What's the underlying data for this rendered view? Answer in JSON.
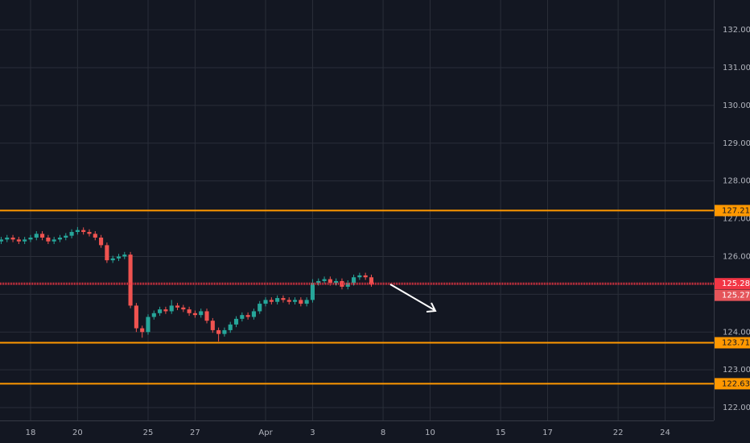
{
  "chart_data": {
    "type": "candlestick",
    "up_color": "#26a69a",
    "down_color": "#ef5350",
    "grid": true,
    "x": [
      -1.25,
      -1,
      -0.75,
      -0.5,
      -0.25,
      0,
      0.25,
      0.5,
      0.75,
      1,
      1.25,
      1.5,
      1.75,
      2,
      2.25,
      2.5,
      2.75,
      3,
      3.25,
      3.5,
      3.75,
      4,
      4.25,
      4.5,
      4.75,
      5,
      5.25,
      5.5,
      5.75,
      6,
      6.25,
      6.5,
      6.75,
      7,
      7.25,
      7.5,
      7.75,
      8,
      8.25,
      8.5,
      8.75,
      9,
      9.25,
      9.5,
      9.75,
      10,
      10.25,
      10.5,
      10.75,
      11,
      11.25,
      11.5,
      11.75,
      12,
      12.25,
      12.5,
      12.75,
      13,
      13.25,
      13.5,
      13.75,
      14,
      14.25,
      14.5
    ],
    "open": [
      126.4,
      126.45,
      126.5,
      126.45,
      126.4,
      126.45,
      126.5,
      126.6,
      126.5,
      126.4,
      126.45,
      126.5,
      126.55,
      126.65,
      126.7,
      126.65,
      126.6,
      126.5,
      126.3,
      125.9,
      125.95,
      126.0,
      126.05,
      124.7,
      124.1,
      124.0,
      124.4,
      124.5,
      124.6,
      124.55,
      124.7,
      124.65,
      124.6,
      124.5,
      124.45,
      124.55,
      124.3,
      124.05,
      123.95,
      124.05,
      124.2,
      124.35,
      124.45,
      124.4,
      124.55,
      124.75,
      124.85,
      124.8,
      124.9,
      124.85,
      124.8,
      124.85,
      124.75,
      124.85,
      125.3,
      125.35,
      125.4,
      125.3,
      125.35,
      125.2,
      125.3,
      125.45,
      125.5,
      125.45
    ],
    "high": [
      126.52,
      126.57,
      126.57,
      126.52,
      126.52,
      126.57,
      126.67,
      126.67,
      126.57,
      126.52,
      126.57,
      126.62,
      126.72,
      126.78,
      126.77,
      126.72,
      126.67,
      126.57,
      126.37,
      126.02,
      126.07,
      126.12,
      126.12,
      124.77,
      124.17,
      124.47,
      124.57,
      124.67,
      124.67,
      124.85,
      124.77,
      124.72,
      124.67,
      124.57,
      124.62,
      124.62,
      124.37,
      124.12,
      124.12,
      124.27,
      124.42,
      124.52,
      124.52,
      124.62,
      124.82,
      124.92,
      124.92,
      124.97,
      124.97,
      124.92,
      124.92,
      124.92,
      124.92,
      125.4,
      125.42,
      125.47,
      125.47,
      125.42,
      125.42,
      125.37,
      125.52,
      125.57,
      125.57,
      125.52
    ],
    "low": [
      126.33,
      126.38,
      126.38,
      126.33,
      126.33,
      126.38,
      126.43,
      126.43,
      126.33,
      126.33,
      126.38,
      126.43,
      126.48,
      126.58,
      126.58,
      126.53,
      126.43,
      126.23,
      125.83,
      125.83,
      125.88,
      125.93,
      124.63,
      124.0,
      123.85,
      123.93,
      124.33,
      124.43,
      124.48,
      124.48,
      124.58,
      124.53,
      124.43,
      124.38,
      124.38,
      124.23,
      123.98,
      123.75,
      123.88,
      123.98,
      124.13,
      124.28,
      124.33,
      124.33,
      124.48,
      124.68,
      124.73,
      124.73,
      124.78,
      124.73,
      124.73,
      124.68,
      124.68,
      124.78,
      125.23,
      125.28,
      125.23,
      125.23,
      125.13,
      125.13,
      125.23,
      125.38,
      125.38,
      125.2
    ],
    "close": [
      126.45,
      126.5,
      126.45,
      126.4,
      126.45,
      126.5,
      126.6,
      126.5,
      126.4,
      126.45,
      126.5,
      126.55,
      126.65,
      126.7,
      126.65,
      126.6,
      126.5,
      126.3,
      125.9,
      125.95,
      126.0,
      126.05,
      124.7,
      124.1,
      124.0,
      124.4,
      124.5,
      124.6,
      124.55,
      124.7,
      124.65,
      124.6,
      124.5,
      124.45,
      124.55,
      124.3,
      124.05,
      123.95,
      124.05,
      124.2,
      124.35,
      124.45,
      124.4,
      124.55,
      124.75,
      124.85,
      124.8,
      124.9,
      124.85,
      124.8,
      124.85,
      124.75,
      124.85,
      125.3,
      125.35,
      125.4,
      125.3,
      125.35,
      125.2,
      125.3,
      125.45,
      125.5,
      125.45,
      125.271
    ],
    "xlim": [
      -1.3,
      29.07
    ],
    "xticks": [
      {
        "value": 0,
        "label": "18"
      },
      {
        "value": 2,
        "label": "20"
      },
      {
        "value": 5,
        "label": "25"
      },
      {
        "value": 7,
        "label": "27"
      },
      {
        "value": 10,
        "label": "Apr"
      },
      {
        "value": 12,
        "label": "3"
      },
      {
        "value": 15,
        "label": "8"
      },
      {
        "value": 17,
        "label": "10"
      },
      {
        "value": 20,
        "label": "15"
      },
      {
        "value": 22,
        "label": "17"
      },
      {
        "value": 25,
        "label": "22"
      },
      {
        "value": 27,
        "label": "24"
      }
    ],
    "ylim": [
      121.66,
      132.79
    ],
    "yticks": [
      {
        "value": 122,
        "label": "122.000"
      },
      {
        "value": 123,
        "label": "123.000"
      },
      {
        "value": 124,
        "label": "124.000"
      },
      {
        "value": 125,
        "label": "125.000"
      },
      {
        "value": 126,
        "label": "126.000"
      },
      {
        "value": 127,
        "label": "127.000"
      },
      {
        "value": 128,
        "label": "128.000"
      },
      {
        "value": 129,
        "label": "129.000"
      },
      {
        "value": 130,
        "label": "130.000"
      },
      {
        "value": 131,
        "label": "131.000"
      },
      {
        "value": 132,
        "label": "132.000"
      }
    ],
    "horizontal_lines": [
      {
        "value": 127.216,
        "color": "#ff9800"
      },
      {
        "value": {
          "value": 125.28,
          "label": "125.280"
        },
        "color": "#f23645"
      },
      {
        "value": 123.717,
        "color": "#ff9800"
      },
      {
        "value": 122.632,
        "color": "#ff9800"
      }
    ],
    "last_price_color": "#e5555a"
  }
}
